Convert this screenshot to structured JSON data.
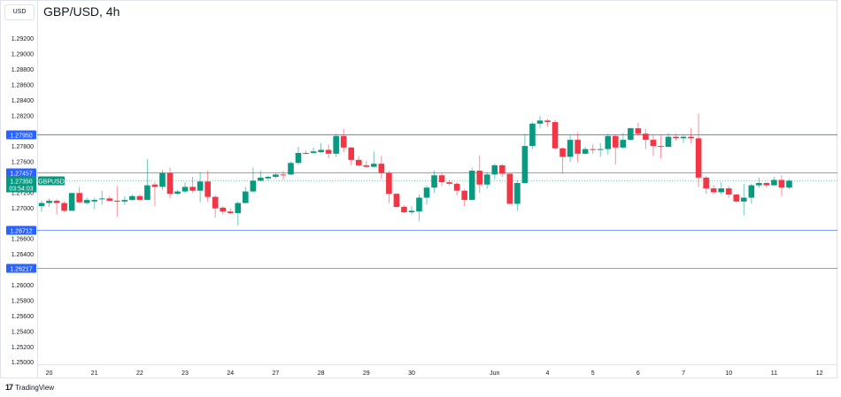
{
  "header": {
    "currency": "USD",
    "title": "GBP/USD, 4h"
  },
  "footer": {
    "brand": "TradingView",
    "logo_icon": "tradingview-logo-icon"
  },
  "colors": {
    "up": "#089981",
    "down": "#f23645",
    "level_line": "#2962ff",
    "resistance_line": "#787b86",
    "label_bg": "#2962ff",
    "price_label_bg": "#089981"
  },
  "chart_data": {
    "type": "candlestick",
    "symbol": "GBPUSD",
    "interval": "4h",
    "ylim": [
      1.25,
      1.294
    ],
    "y_ticks": [
      "1.29200",
      "1.29000",
      "1.28800",
      "1.28600",
      "1.28400",
      "1.28200",
      "1.28000",
      "1.27800",
      "1.27600",
      "1.27400",
      "1.27200",
      "1.27000",
      "1.26800",
      "1.26600",
      "1.26400",
      "1.26200",
      "1.26000",
      "1.25800",
      "1.25600",
      "1.25400",
      "1.25200",
      "1.25000"
    ],
    "x_ticks": [
      {
        "label": "20",
        "candle": 1
      },
      {
        "label": "21",
        "candle": 7
      },
      {
        "label": "22",
        "candle": 13
      },
      {
        "label": "23",
        "candle": 19
      },
      {
        "label": "24",
        "candle": 25
      },
      {
        "label": "27",
        "candle": 31
      },
      {
        "label": "28",
        "candle": 37
      },
      {
        "label": "29",
        "candle": 43
      },
      {
        "label": "30",
        "candle": 49
      },
      {
        "label": "Jun",
        "candle": 60
      },
      {
        "label": "4",
        "candle": 67
      },
      {
        "label": "5",
        "candle": 73
      },
      {
        "label": "6",
        "candle": 79
      },
      {
        "label": "7",
        "candle": 85
      },
      {
        "label": "10",
        "candle": 91
      },
      {
        "label": "11",
        "candle": 97
      },
      {
        "label": "12",
        "candle": 103
      }
    ],
    "levels": [
      {
        "price": "1.27950",
        "kind": "resistance"
      },
      {
        "price": "1.27457",
        "kind": "level"
      },
      {
        "price": "1.26712",
        "kind": "level"
      },
      {
        "price": "1.26217",
        "kind": "level"
      }
    ],
    "last_price": {
      "price": "1.27350",
      "countdown": "03:54:03",
      "symbol_tag": "GBPUSD"
    },
    "ohlc": [
      [
        1.2702,
        1.2709,
        1.2695,
        1.2706
      ],
      [
        1.2706,
        1.2712,
        1.2701,
        1.2709
      ],
      [
        1.2709,
        1.2711,
        1.2691,
        1.2706
      ],
      [
        1.2706,
        1.2708,
        1.2694,
        1.2696
      ],
      [
        1.2696,
        1.2719,
        1.2696,
        1.2719
      ],
      [
        1.2719,
        1.2727,
        1.2706,
        1.2707
      ],
      [
        1.2706,
        1.2713,
        1.2704,
        1.271
      ],
      [
        1.2708,
        1.2713,
        1.2698,
        1.271
      ],
      [
        1.2711,
        1.2722,
        1.2704,
        1.2712
      ],
      [
        1.2712,
        1.2715,
        1.2708,
        1.2709
      ],
      [
        1.2709,
        1.2728,
        1.2688,
        1.2708
      ],
      [
        1.2708,
        1.2715,
        1.2704,
        1.271
      ],
      [
        1.271,
        1.2717,
        1.2709,
        1.2715
      ],
      [
        1.2715,
        1.2717,
        1.2709,
        1.271
      ],
      [
        1.271,
        1.2763,
        1.271,
        1.2729
      ],
      [
        1.273,
        1.2733,
        1.2702,
        1.2727
      ],
      [
        1.2727,
        1.2749,
        1.2723,
        1.2745
      ],
      [
        1.2745,
        1.2752,
        1.2712,
        1.2718
      ],
      [
        1.2718,
        1.2723,
        1.2717,
        1.2721
      ],
      [
        1.2721,
        1.2733,
        1.2719,
        1.2727
      ],
      [
        1.2727,
        1.274,
        1.2719,
        1.2722
      ],
      [
        1.2722,
        1.2746,
        1.2707,
        1.2734
      ],
      [
        1.2734,
        1.2748,
        1.2708,
        1.2714
      ],
      [
        1.2714,
        1.2716,
        1.2687,
        1.2699
      ],
      [
        1.27,
        1.2702,
        1.2691,
        1.2695
      ],
      [
        1.2695,
        1.2699,
        1.2692,
        1.2693
      ],
      [
        1.2693,
        1.2708,
        1.2677,
        1.2706
      ],
      [
        1.2706,
        1.2727,
        1.2706,
        1.2721
      ],
      [
        1.2721,
        1.2752,
        1.2719,
        1.2735
      ],
      [
        1.2735,
        1.2748,
        1.2734,
        1.2739
      ],
      [
        1.2738,
        1.2742,
        1.2735,
        1.274
      ],
      [
        1.274,
        1.2745,
        1.2738,
        1.2743
      ],
      [
        1.2743,
        1.2748,
        1.2736,
        1.2742
      ],
      [
        1.2743,
        1.276,
        1.2742,
        1.2758
      ],
      [
        1.2758,
        1.2779,
        1.2756,
        1.2771
      ],
      [
        1.2771,
        1.2774,
        1.2769,
        1.277
      ],
      [
        1.2771,
        1.2778,
        1.277,
        1.2773
      ],
      [
        1.2772,
        1.2784,
        1.2771,
        1.2775
      ],
      [
        1.2775,
        1.2782,
        1.2764,
        1.277
      ],
      [
        1.277,
        1.2796,
        1.2766,
        1.2793
      ],
      [
        1.2793,
        1.2802,
        1.2772,
        1.2778
      ],
      [
        1.2778,
        1.2779,
        1.2755,
        1.2762
      ],
      [
        1.2762,
        1.2767,
        1.2754,
        1.2755
      ],
      [
        1.2755,
        1.2761,
        1.2752,
        1.2753
      ],
      [
        1.2753,
        1.2773,
        1.2752,
        1.2757
      ],
      [
        1.2757,
        1.2767,
        1.2737,
        1.2745
      ],
      [
        1.2745,
        1.2748,
        1.2706,
        1.2718
      ],
      [
        1.2718,
        1.2719,
        1.27,
        1.2701
      ],
      [
        1.2701,
        1.2703,
        1.2693,
        1.2694
      ],
      [
        1.2694,
        1.2702,
        1.2691,
        1.2696
      ],
      [
        1.2695,
        1.2717,
        1.2683,
        1.2713
      ],
      [
        1.2713,
        1.2729,
        1.2704,
        1.2726
      ],
      [
        1.2726,
        1.2748,
        1.2719,
        1.2742
      ],
      [
        1.2742,
        1.2745,
        1.2728,
        1.2733
      ],
      [
        1.2733,
        1.2736,
        1.2729,
        1.2731
      ],
      [
        1.2731,
        1.2733,
        1.2716,
        1.2722
      ],
      [
        1.2722,
        1.2724,
        1.2702,
        1.271
      ],
      [
        1.271,
        1.2752,
        1.271,
        1.2748
      ],
      [
        1.2748,
        1.2768,
        1.2719,
        1.273
      ],
      [
        1.273,
        1.2746,
        1.2725,
        1.2743
      ],
      [
        1.2743,
        1.2757,
        1.2737,
        1.2755
      ],
      [
        1.2755,
        1.2757,
        1.274,
        1.2744
      ],
      [
        1.2744,
        1.2744,
        1.2705,
        1.2705
      ],
      [
        1.2705,
        1.2736,
        1.2696,
        1.2732
      ],
      [
        1.2732,
        1.2796,
        1.2732,
        1.278
      ],
      [
        1.278,
        1.2811,
        1.2776,
        1.2809
      ],
      [
        1.2809,
        1.2819,
        1.2803,
        1.2813
      ],
      [
        1.2813,
        1.2815,
        1.2805,
        1.2811
      ],
      [
        1.2811,
        1.2814,
        1.2775,
        1.2777
      ],
      [
        1.2777,
        1.2778,
        1.2744,
        1.2766
      ],
      [
        1.2766,
        1.2794,
        1.2759,
        1.2788
      ],
      [
        1.2788,
        1.2798,
        1.2759,
        1.277
      ],
      [
        1.277,
        1.2779,
        1.2769,
        1.2776
      ],
      [
        1.2776,
        1.2782,
        1.277,
        1.2775
      ],
      [
        1.2775,
        1.2784,
        1.2766,
        1.2776
      ],
      [
        1.2776,
        1.2796,
        1.2769,
        1.2793
      ],
      [
        1.2793,
        1.2794,
        1.2756,
        1.2778
      ],
      [
        1.2778,
        1.2797,
        1.2776,
        1.2788
      ],
      [
        1.2788,
        1.2804,
        1.2787,
        1.2803
      ],
      [
        1.2803,
        1.281,
        1.2794,
        1.2796
      ],
      [
        1.2796,
        1.2802,
        1.2776,
        1.2788
      ],
      [
        1.2788,
        1.2794,
        1.2767,
        1.278
      ],
      [
        1.278,
        1.2794,
        1.2764,
        1.2779
      ],
      [
        1.2779,
        1.2797,
        1.2778,
        1.2792
      ],
      [
        1.2792,
        1.2796,
        1.2787,
        1.279
      ],
      [
        1.279,
        1.2794,
        1.2784,
        1.2792
      ],
      [
        1.2792,
        1.2803,
        1.2783,
        1.279
      ],
      [
        1.279,
        1.2822,
        1.2727,
        1.2739
      ],
      [
        1.2739,
        1.2741,
        1.2718,
        1.2725
      ],
      [
        1.2725,
        1.2729,
        1.2718,
        1.272
      ],
      [
        1.272,
        1.2733,
        1.2717,
        1.2725
      ],
      [
        1.2725,
        1.2728,
        1.2713,
        1.2717
      ],
      [
        1.2717,
        1.2718,
        1.2706,
        1.2708
      ],
      [
        1.2708,
        1.2731,
        1.269,
        1.2713
      ],
      [
        1.2713,
        1.2731,
        1.2705,
        1.2729
      ],
      [
        1.2729,
        1.2739,
        1.2726,
        1.2732
      ],
      [
        1.2732,
        1.2733,
        1.2726,
        1.2729
      ],
      [
        1.2729,
        1.274,
        1.2729,
        1.2736
      ],
      [
        1.2736,
        1.2742,
        1.2715,
        1.2726
      ],
      [
        1.2726,
        1.2737,
        1.2724,
        1.2735
      ]
    ]
  }
}
